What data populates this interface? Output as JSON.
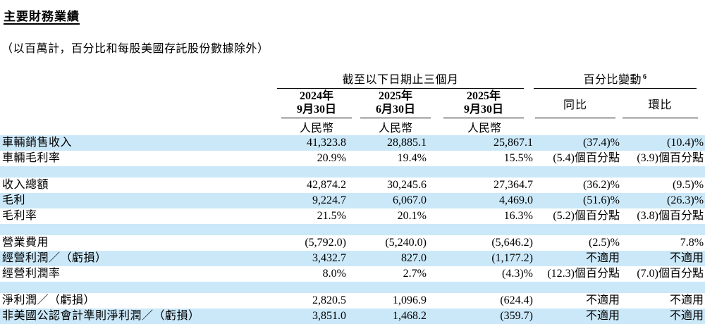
{
  "page": {
    "title": "主要財務業績",
    "subtitle": "（以百萬計，百分比和每股美國存託股份數據除外）"
  },
  "colors": {
    "highlight_row": "#cbe8f8",
    "text": "#000000",
    "rule": "#000000"
  },
  "table": {
    "group_headers": {
      "period": "截至以下日期止三個月",
      "pct_change": "百分比變動",
      "footnote": "6"
    },
    "period_columns": [
      {
        "year": "2024年",
        "date": "9月30日",
        "currency": "人民幣"
      },
      {
        "year": "2025年",
        "date": "6月30日",
        "currency": "人民幣"
      },
      {
        "year": "2025年",
        "date": "9月30日",
        "currency": "人民幣"
      }
    ],
    "change_columns": [
      {
        "label": "同比"
      },
      {
        "label": "環比"
      }
    ],
    "rows": [
      {
        "type": "data",
        "highlight": true,
        "label": "車輛銷售收入",
        "values": [
          "41,323.8",
          "28,885.1",
          "25,867.1",
          "(37.4)%",
          "(10.4)%"
        ]
      },
      {
        "type": "data",
        "highlight": false,
        "label": "車輛毛利率",
        "values": [
          "20.9%",
          "19.4%",
          "15.5%",
          "(5.4)個百分點",
          "(3.9)個百分點"
        ]
      },
      {
        "type": "spacer",
        "highlight": true
      },
      {
        "type": "data",
        "highlight": false,
        "label": "收入總額",
        "values": [
          "42,874.2",
          "30,245.6",
          "27,364.7",
          "(36.2)%",
          "(9.5)%"
        ]
      },
      {
        "type": "data",
        "highlight": true,
        "label": "毛利",
        "values": [
          "9,224.7",
          "6,067.0",
          "4,469.0",
          "(51.6)%",
          "(26.3)%"
        ]
      },
      {
        "type": "data",
        "highlight": false,
        "label": "毛利率",
        "values": [
          "21.5%",
          "20.1%",
          "16.3%",
          "(5.2)個百分點",
          "(3.8)個百分點"
        ]
      },
      {
        "type": "spacer",
        "highlight": true
      },
      {
        "type": "data",
        "highlight": false,
        "label": "營業費用",
        "values": [
          "(5,792.0)",
          "(5,240.0)",
          "(5,646.2)",
          "(2.5)%",
          "7.8%"
        ]
      },
      {
        "type": "data",
        "highlight": true,
        "label": "經營利潤／（虧損）",
        "values": [
          "3,432.7",
          "827.0",
          "(1,177.2)",
          "不適用",
          "不適用"
        ]
      },
      {
        "type": "data",
        "highlight": false,
        "label": "經營利潤率",
        "values": [
          "8.0%",
          "2.7%",
          "(4.3)%",
          "(12.3)個百分點",
          "(7.0)個百分點"
        ]
      },
      {
        "type": "spacer",
        "highlight": true
      },
      {
        "type": "data",
        "highlight": false,
        "label": "淨利潤／（虧損）",
        "values": [
          "2,820.5",
          "1,096.9",
          "(624.4)",
          "不適用",
          "不適用"
        ]
      },
      {
        "type": "data",
        "highlight": true,
        "label": "非美國公認會計準則淨利潤／（虧損）",
        "values": [
          "3,851.0",
          "1,468.2",
          "(359.7)",
          "不適用",
          "不適用"
        ]
      }
    ]
  }
}
